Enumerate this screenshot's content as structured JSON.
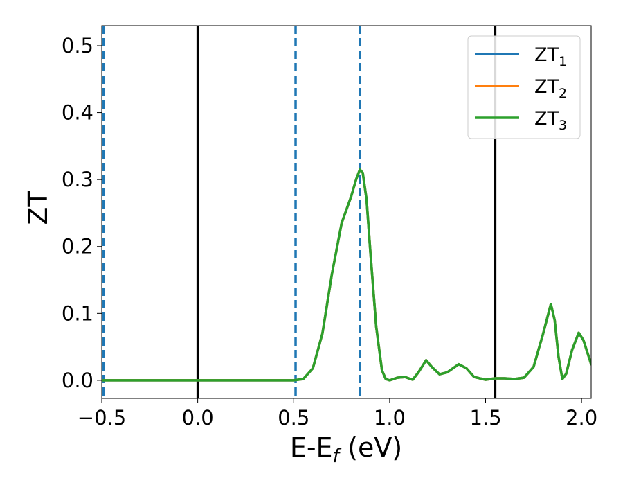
{
  "chart_data": {
    "type": "line",
    "title": "",
    "xlabel_main": "E-E",
    "xlabel_sub": "f",
    "xlabel_unit": " (eV)",
    "ylabel": "ZT",
    "xlim": [
      -0.5,
      2.05
    ],
    "ylim": [
      -0.027,
      0.53
    ],
    "x_ticks": [
      {
        "value": -0.5,
        "label": "−0.5"
      },
      {
        "value": 0.0,
        "label": "0.0"
      },
      {
        "value": 0.5,
        "label": "0.5"
      },
      {
        "value": 1.0,
        "label": "1.0"
      },
      {
        "value": 1.5,
        "label": "1.5"
      },
      {
        "value": 2.0,
        "label": "2.0"
      }
    ],
    "y_ticks": [
      {
        "value": 0.0,
        "label": "0.0"
      },
      {
        "value": 0.1,
        "label": "0.1"
      },
      {
        "value": 0.2,
        "label": "0.2"
      },
      {
        "value": 0.3,
        "label": "0.3"
      },
      {
        "value": 0.4,
        "label": "0.4"
      },
      {
        "value": 0.5,
        "label": "0.5"
      }
    ],
    "legend_position": "top-right",
    "series": [
      {
        "name": "ZT",
        "sub": "1",
        "color": "#1f77b4",
        "points": [
          [
            -0.5,
            0
          ],
          [
            0.5,
            0
          ],
          [
            0.55,
            0.002
          ],
          [
            0.6,
            0.018
          ],
          [
            0.65,
            0.07
          ],
          [
            0.7,
            0.16
          ],
          [
            0.75,
            0.235
          ],
          [
            0.8,
            0.275
          ],
          [
            0.825,
            0.3
          ],
          [
            0.845,
            0.315
          ],
          [
            0.86,
            0.31
          ],
          [
            0.88,
            0.27
          ],
          [
            0.9,
            0.19
          ],
          [
            0.93,
            0.08
          ],
          [
            0.96,
            0.015
          ],
          [
            0.98,
            0.002
          ],
          [
            1.0,
            0.0
          ],
          [
            1.04,
            0.004
          ],
          [
            1.08,
            0.005
          ],
          [
            1.12,
            0.001
          ],
          [
            1.15,
            0.012
          ],
          [
            1.19,
            0.03
          ],
          [
            1.22,
            0.02
          ],
          [
            1.26,
            0.009
          ],
          [
            1.3,
            0.012
          ],
          [
            1.36,
            0.024
          ],
          [
            1.4,
            0.018
          ],
          [
            1.44,
            0.005
          ],
          [
            1.5,
            0.001
          ],
          [
            1.55,
            0.003
          ],
          [
            1.6,
            0.003
          ],
          [
            1.65,
            0.002
          ],
          [
            1.7,
            0.004
          ],
          [
            1.75,
            0.02
          ],
          [
            1.8,
            0.07
          ],
          [
            1.84,
            0.114
          ],
          [
            1.86,
            0.09
          ],
          [
            1.88,
            0.035
          ],
          [
            1.9,
            0.002
          ],
          [
            1.92,
            0.01
          ],
          [
            1.95,
            0.045
          ],
          [
            1.985,
            0.071
          ],
          [
            2.01,
            0.06
          ],
          [
            2.05,
            0.024
          ]
        ]
      },
      {
        "name": "ZT",
        "sub": "2",
        "color": "#ff7f0e",
        "points": [
          [
            -0.5,
            0
          ],
          [
            0.5,
            0
          ],
          [
            0.55,
            0.002
          ],
          [
            0.6,
            0.018
          ],
          [
            0.65,
            0.07
          ],
          [
            0.7,
            0.16
          ],
          [
            0.75,
            0.235
          ],
          [
            0.8,
            0.275
          ],
          [
            0.825,
            0.3
          ],
          [
            0.845,
            0.315
          ],
          [
            0.86,
            0.31
          ],
          [
            0.88,
            0.27
          ],
          [
            0.9,
            0.19
          ],
          [
            0.93,
            0.08
          ],
          [
            0.96,
            0.015
          ],
          [
            0.98,
            0.002
          ],
          [
            1.0,
            0.0
          ],
          [
            1.04,
            0.004
          ],
          [
            1.08,
            0.005
          ],
          [
            1.12,
            0.001
          ],
          [
            1.15,
            0.012
          ],
          [
            1.19,
            0.03
          ],
          [
            1.22,
            0.02
          ],
          [
            1.26,
            0.009
          ],
          [
            1.3,
            0.012
          ],
          [
            1.36,
            0.024
          ],
          [
            1.4,
            0.018
          ],
          [
            1.44,
            0.005
          ],
          [
            1.5,
            0.001
          ],
          [
            1.55,
            0.003
          ],
          [
            1.6,
            0.003
          ],
          [
            1.65,
            0.002
          ],
          [
            1.7,
            0.004
          ],
          [
            1.75,
            0.02
          ],
          [
            1.8,
            0.07
          ],
          [
            1.84,
            0.114
          ],
          [
            1.86,
            0.09
          ],
          [
            1.88,
            0.035
          ],
          [
            1.9,
            0.002
          ],
          [
            1.92,
            0.01
          ],
          [
            1.95,
            0.045
          ],
          [
            1.985,
            0.071
          ],
          [
            2.01,
            0.06
          ],
          [
            2.05,
            0.024
          ]
        ]
      },
      {
        "name": "ZT",
        "sub": "3",
        "color": "#2ca02c",
        "points": [
          [
            -0.5,
            0
          ],
          [
            0.5,
            0
          ],
          [
            0.55,
            0.002
          ],
          [
            0.6,
            0.018
          ],
          [
            0.65,
            0.07
          ],
          [
            0.7,
            0.16
          ],
          [
            0.75,
            0.235
          ],
          [
            0.8,
            0.275
          ],
          [
            0.825,
            0.3
          ],
          [
            0.845,
            0.315
          ],
          [
            0.86,
            0.31
          ],
          [
            0.88,
            0.27
          ],
          [
            0.9,
            0.19
          ],
          [
            0.93,
            0.08
          ],
          [
            0.96,
            0.015
          ],
          [
            0.98,
            0.002
          ],
          [
            1.0,
            0.0
          ],
          [
            1.04,
            0.004
          ],
          [
            1.08,
            0.005
          ],
          [
            1.12,
            0.001
          ],
          [
            1.15,
            0.012
          ],
          [
            1.19,
            0.03
          ],
          [
            1.22,
            0.02
          ],
          [
            1.26,
            0.009
          ],
          [
            1.3,
            0.012
          ],
          [
            1.36,
            0.024
          ],
          [
            1.4,
            0.018
          ],
          [
            1.44,
            0.005
          ],
          [
            1.5,
            0.001
          ],
          [
            1.55,
            0.003
          ],
          [
            1.6,
            0.003
          ],
          [
            1.65,
            0.002
          ],
          [
            1.7,
            0.004
          ],
          [
            1.75,
            0.02
          ],
          [
            1.8,
            0.07
          ],
          [
            1.84,
            0.114
          ],
          [
            1.86,
            0.09
          ],
          [
            1.88,
            0.035
          ],
          [
            1.9,
            0.002
          ],
          [
            1.92,
            0.01
          ],
          [
            1.95,
            0.045
          ],
          [
            1.985,
            0.071
          ],
          [
            2.01,
            0.06
          ],
          [
            2.05,
            0.024
          ]
        ]
      }
    ],
    "vertical_lines": [
      {
        "x": -0.49,
        "style": "dashed",
        "color": "#1f77b4"
      },
      {
        "x": 0.0,
        "style": "solid",
        "color": "#000000"
      },
      {
        "x": 0.51,
        "style": "dashed",
        "color": "#1f77b4"
      },
      {
        "x": 0.845,
        "style": "dashed",
        "color": "#1f77b4"
      },
      {
        "x": 1.55,
        "style": "solid",
        "color": "#000000"
      }
    ]
  }
}
